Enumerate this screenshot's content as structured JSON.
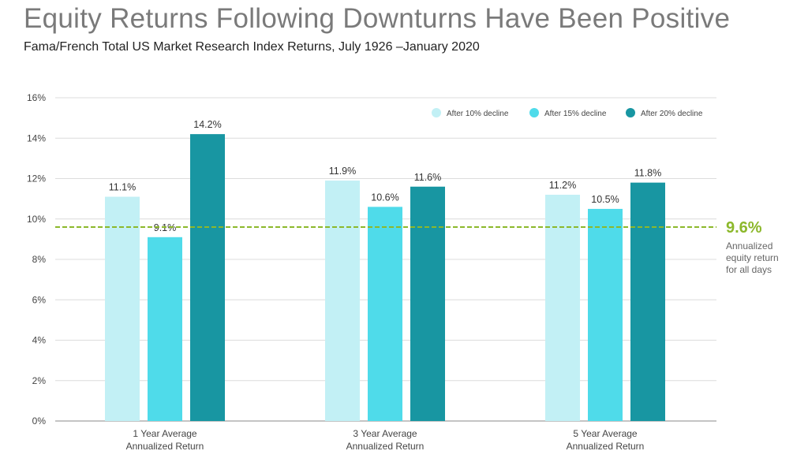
{
  "title": "Equity Returns Following Downturns Have Been Positive",
  "subtitle": "Fama/French Total US Market Research Index Returns, July 1926 –January 2020",
  "chart_data": {
    "type": "bar",
    "categories": [
      [
        "1 Year Average",
        "Annualized Return"
      ],
      [
        "3 Year Average",
        "Annualized Return"
      ],
      [
        "5 Year Average",
        "Annualized Return"
      ]
    ],
    "series": [
      {
        "name": "After 10% decline",
        "color": "#c2f0f5",
        "values": [
          11.1,
          11.9,
          11.2
        ],
        "labels": [
          "11.1%",
          "11.9%",
          "11.2%"
        ]
      },
      {
        "name": "After 15% decline",
        "color": "#4fdbea",
        "values": [
          9.1,
          10.6,
          10.5
        ],
        "labels": [
          "9.1%",
          "10.6%",
          "10.5%"
        ]
      },
      {
        "name": "After 20% decline",
        "color": "#1896a2",
        "values": [
          14.2,
          11.6,
          11.8
        ],
        "labels": [
          "14.2%",
          "11.6%",
          "11.8%"
        ]
      }
    ],
    "ylim": [
      0,
      16
    ],
    "yticks": [
      {
        "value": 0,
        "label": "0%"
      },
      {
        "value": 2,
        "label": "2%"
      },
      {
        "value": 4,
        "label": "4%"
      },
      {
        "value": 6,
        "label": "6%"
      },
      {
        "value": 8,
        "label": "8%"
      },
      {
        "value": 10,
        "label": "10%"
      },
      {
        "value": 12,
        "label": "12%"
      },
      {
        "value": 14,
        "label": "14%"
      },
      {
        "value": 16,
        "label": "16%"
      }
    ],
    "grid": true,
    "legend": "top-right",
    "reference_line": {
      "value": 9.6,
      "label": "9.6%",
      "note": [
        "Annualized",
        "equity return",
        "for all days"
      ],
      "color": "#8cb82b"
    }
  }
}
